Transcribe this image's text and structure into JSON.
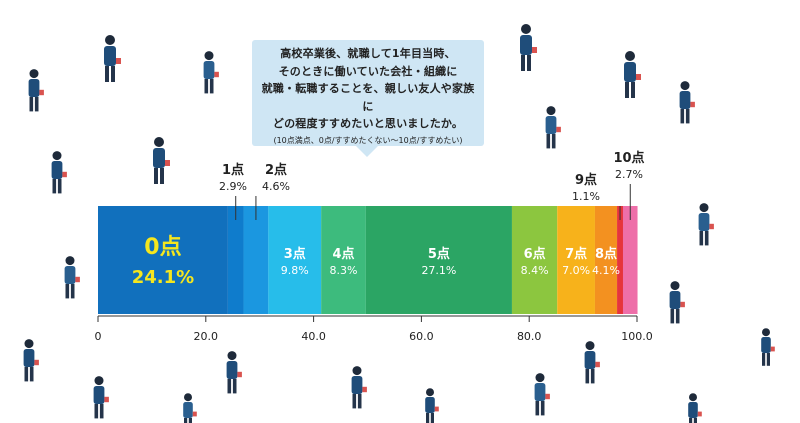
{
  "question": {
    "lines": [
      "高校卒業後、就職して1年目当時、",
      "そのときに働いていた会社・組織に",
      "就職・転職することを、親しい友人や家族に",
      "どの程度すすめたいと思いましたか。"
    ],
    "note": "(10点満点、0点/すすめたくない〜10点/すすめたい)"
  },
  "chart_data": {
    "type": "bar",
    "orientation": "horizontal-stacked-100",
    "categories": [
      "0点",
      "1点",
      "2点",
      "3点",
      "4点",
      "5点",
      "6点",
      "7点",
      "8点",
      "9点",
      "10点"
    ],
    "values": [
      24.1,
      2.9,
      4.6,
      9.8,
      8.3,
      27.1,
      8.4,
      7.0,
      4.1,
      1.1,
      2.7
    ],
    "value_labels": [
      "24.1%",
      "2.9%",
      "4.6%",
      "9.8%",
      "8.3%",
      "27.1%",
      "8.4%",
      "7.0%",
      "4.1%",
      "1.1%",
      "2.7%"
    ],
    "colors": [
      "#1170bd",
      "#0f7ccc",
      "#1b97e0",
      "#27bdea",
      "#3dbb7d",
      "#2ba564",
      "#8cc63f",
      "#f7b21b",
      "#f39120",
      "#e6343c",
      "#ee6fa9"
    ],
    "xlim": [
      0,
      100
    ],
    "xticks": [
      "0",
      "20.0",
      "40.0",
      "60.0",
      "80.0",
      "100.0"
    ]
  }
}
